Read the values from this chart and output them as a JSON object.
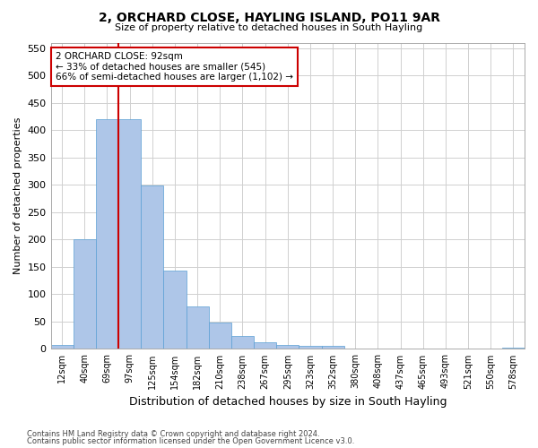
{
  "title": "2, ORCHARD CLOSE, HAYLING ISLAND, PO11 9AR",
  "subtitle": "Size of property relative to detached houses in South Hayling",
  "xlabel": "Distribution of detached houses by size in South Hayling",
  "ylabel": "Number of detached properties",
  "categories": [
    "12sqm",
    "40sqm",
    "69sqm",
    "97sqm",
    "125sqm",
    "154sqm",
    "182sqm",
    "210sqm",
    "238sqm",
    "267sqm",
    "295sqm",
    "323sqm",
    "352sqm",
    "380sqm",
    "408sqm",
    "437sqm",
    "465sqm",
    "493sqm",
    "521sqm",
    "550sqm",
    "578sqm"
  ],
  "values": [
    8,
    200,
    420,
    420,
    298,
    143,
    77,
    49,
    24,
    12,
    8,
    6,
    5,
    1,
    1,
    0,
    0,
    0,
    0,
    0,
    3
  ],
  "bar_color": "#aec6e8",
  "bar_edge_color": "#5a9fd4",
  "vline_x_index": 2.5,
  "vline_color": "#cc0000",
  "annotation_text": "2 ORCHARD CLOSE: 92sqm\n← 33% of detached houses are smaller (545)\n66% of semi-detached houses are larger (1,102) →",
  "annotation_box_color": "#ffffff",
  "annotation_box_edge": "#cc0000",
  "ylim": [
    0,
    560
  ],
  "yticks": [
    0,
    50,
    100,
    150,
    200,
    250,
    300,
    350,
    400,
    450,
    500,
    550
  ],
  "grid_color": "#d0d0d0",
  "background_color": "#ffffff",
  "footer1": "Contains HM Land Registry data © Crown copyright and database right 2024.",
  "footer2": "Contains public sector information licensed under the Open Government Licence v3.0."
}
